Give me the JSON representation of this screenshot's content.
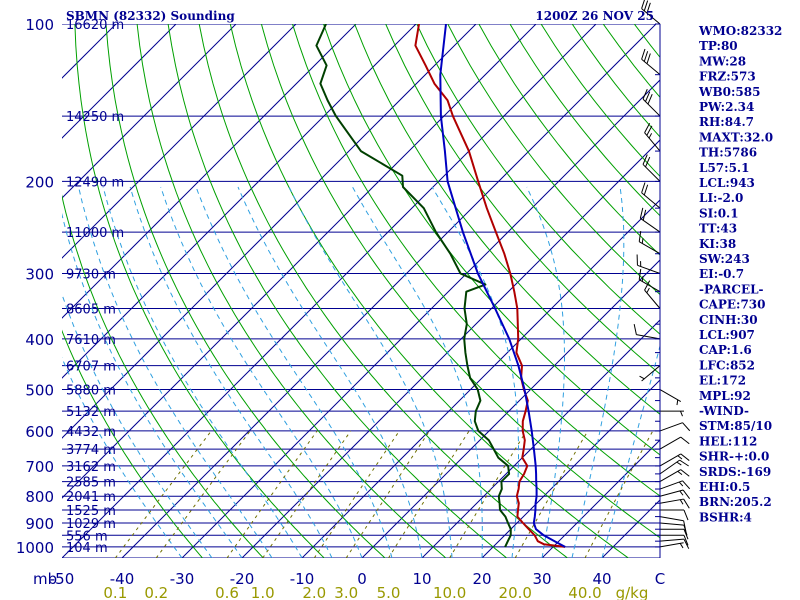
{
  "header": {
    "station": "SBMN (82332) Sounding",
    "datetime": "1200Z 26 NOV 25"
  },
  "colors": {
    "isobar": "#000090",
    "isotherm": "#000090",
    "dry_adiabat": "#00a000",
    "moist_adiabat": "#30a0e0",
    "mixing_ratio": "#707000",
    "temperature": "#b00000",
    "dewpoint": "#004000",
    "parcel": "#0000c0",
    "text": "#000090",
    "mixing_label": "#999900"
  },
  "indices": [
    "WMO:82332",
    "TP:80",
    "MW:28",
    "FRZ:573",
    "WB0:585",
    "PW:2.34",
    "RH:84.7",
    "MAXT:32.0",
    "TH:5786",
    "L57:5.1",
    "LCL:943",
    "LI:-2.0",
    "SI:0.1",
    "TT:43",
    "KI:38",
    "SW:243",
    "EI:-0.7",
    "-PARCEL-",
    "CAPE:730",
    "CINH:30",
    "LCL:907",
    "CAP:1.6",
    "LFC:852",
    "EL:172",
    "MPL:92",
    "-WIND-",
    "STM:85/10",
    "HEL:112",
    "SHR-+:0.0",
    "SRDS:-169",
    "EHI:0.5",
    "BRN:205.2",
    "BSHR:4"
  ],
  "chart_data": {
    "type": "line",
    "title": "SBMN (82332) Sounding",
    "xlabel": "mb",
    "x_tick_labels": [
      "-50",
      "-40",
      "-30",
      "-20",
      "-10",
      "0",
      "10",
      "20",
      "30",
      "40",
      "C"
    ],
    "x_ticks": [
      -50,
      -40,
      -30,
      -20,
      -10,
      0,
      10,
      20,
      30,
      40
    ],
    "y_ticks": [
      100,
      200,
      300,
      400,
      500,
      600,
      700,
      800,
      900,
      1000
    ],
    "y_tick_labels": [
      "100",
      "200",
      "300",
      "400",
      "500",
      "600",
      "700",
      "800",
      "900",
      "1000"
    ],
    "ylim": [
      1000,
      100
    ],
    "mixing_ratio_labels": [
      "0.1",
      "0.2",
      "0.6",
      "1.0",
      "2.0",
      "3.0",
      "5.0",
      "10.0",
      "20.0",
      "40.0",
      "g/kg"
    ],
    "mixing_ratio_values": [
      0.1,
      0.2,
      0.6,
      1.0,
      2.0,
      3.0,
      5.0,
      10.0,
      20.0,
      40.0
    ],
    "heights": [
      {
        "p": 100,
        "label": "16620 m"
      },
      {
        "p": 150,
        "label": "14250 m"
      },
      {
        "p": 200,
        "label": "12490 m"
      },
      {
        "p": 250,
        "label": "11000 m"
      },
      {
        "p": 300,
        "label": "9730 m"
      },
      {
        "p": 350,
        "label": "8605 m"
      },
      {
        "p": 400,
        "label": "7610 m"
      },
      {
        "p": 450,
        "label": "6707 m"
      },
      {
        "p": 500,
        "label": "5880 m"
      },
      {
        "p": 550,
        "label": "5132 m"
      },
      {
        "p": 600,
        "label": "4432 m"
      },
      {
        "p": 650,
        "label": "3774 m"
      },
      {
        "p": 700,
        "label": "3162 m"
      },
      {
        "p": 750,
        "label": "2585 m"
      },
      {
        "p": 800,
        "label": "2041 m"
      },
      {
        "p": 850,
        "label": "1525 m"
      },
      {
        "p": 900,
        "label": "1029 m"
      },
      {
        "p": 950,
        "label": "556 m"
      },
      {
        "p": 1000,
        "label": "104 m"
      }
    ],
    "series": [
      {
        "key": "temperature",
        "points": [
          [
            1000,
            32.0
          ],
          [
            988,
            28.0
          ],
          [
            975,
            26.5
          ],
          [
            950,
            25.0
          ],
          [
            925,
            23.0
          ],
          [
            900,
            21.0
          ],
          [
            875,
            19.0
          ],
          [
            850,
            18.0
          ],
          [
            825,
            17.0
          ],
          [
            800,
            15.5
          ],
          [
            775,
            14.6
          ],
          [
            750,
            13.5
          ],
          [
            725,
            13.0
          ],
          [
            700,
            12.2
          ],
          [
            675,
            10.0
          ],
          [
            650,
            8.8
          ],
          [
            625,
            7.5
          ],
          [
            600,
            5.6
          ],
          [
            575,
            4.0
          ],
          [
            550,
            2.8
          ],
          [
            525,
            1.4
          ],
          [
            500,
            -1.1
          ],
          [
            475,
            -3.5
          ],
          [
            450,
            -5.4
          ],
          [
            425,
            -8.5
          ],
          [
            400,
            -10.5
          ],
          [
            375,
            -13.0
          ],
          [
            350,
            -15.7
          ],
          [
            325,
            -19.0
          ],
          [
            300,
            -22.7
          ],
          [
            275,
            -27.0
          ],
          [
            250,
            -32.0
          ],
          [
            225,
            -37.5
          ],
          [
            200,
            -43.4
          ],
          [
            175,
            -50.0
          ],
          [
            150,
            -58.5
          ],
          [
            140,
            -62.0
          ],
          [
            130,
            -67.0
          ],
          [
            120,
            -71.5
          ],
          [
            110,
            -76.5
          ],
          [
            100,
            -79.5
          ]
        ]
      },
      {
        "key": "dewpoint",
        "points": [
          [
            1000,
            22.0
          ],
          [
            975,
            21.5
          ],
          [
            950,
            21.0
          ],
          [
            925,
            20.0
          ],
          [
            900,
            18.5
          ],
          [
            875,
            17.0
          ],
          [
            850,
            15.0
          ],
          [
            825,
            13.8
          ],
          [
            800,
            12.5
          ],
          [
            775,
            11.8
          ],
          [
            750,
            10.5
          ],
          [
            725,
            10.5
          ],
          [
            700,
            9.0
          ],
          [
            675,
            6.0
          ],
          [
            650,
            3.8
          ],
          [
            625,
            1.5
          ],
          [
            600,
            -1.8
          ],
          [
            575,
            -4.0
          ],
          [
            550,
            -5.5
          ],
          [
            525,
            -6.5
          ],
          [
            500,
            -8.8
          ],
          [
            475,
            -12.0
          ],
          [
            450,
            -14.5
          ],
          [
            425,
            -17.0
          ],
          [
            400,
            -19.5
          ],
          [
            375,
            -21.5
          ],
          [
            350,
            -24.5
          ],
          [
            325,
            -27.0
          ],
          [
            315,
            -25.0
          ],
          [
            300,
            -31.0
          ],
          [
            275,
            -36.0
          ],
          [
            250,
            -42.0
          ],
          [
            225,
            -48.0
          ],
          [
            205,
            -55.0
          ],
          [
            195,
            -57.0
          ],
          [
            175,
            -68.0
          ],
          [
            150,
            -78.0
          ],
          [
            140,
            -82.0
          ],
          [
            130,
            -86.0
          ],
          [
            120,
            -88.0
          ],
          [
            110,
            -93.0
          ],
          [
            100,
            -95.0
          ]
        ]
      },
      {
        "key": "parcel",
        "points": [
          [
            1000,
            32.0
          ],
          [
            975,
            29.3
          ],
          [
            950,
            26.5
          ],
          [
            925,
            24.2
          ],
          [
            900,
            22.8
          ],
          [
            875,
            21.9
          ],
          [
            850,
            20.9
          ],
          [
            825,
            19.8
          ],
          [
            800,
            18.8
          ],
          [
            775,
            17.6
          ],
          [
            750,
            16.3
          ],
          [
            725,
            15.0
          ],
          [
            700,
            13.6
          ],
          [
            650,
            10.5
          ],
          [
            600,
            7.1
          ],
          [
            550,
            3.3
          ],
          [
            500,
            -1.0
          ],
          [
            450,
            -6.0
          ],
          [
            400,
            -12.0
          ],
          [
            350,
            -19.4
          ],
          [
            300,
            -28.1
          ],
          [
            250,
            -37.5
          ],
          [
            200,
            -48.5
          ],
          [
            175,
            -54.0
          ],
          [
            150,
            -60.5
          ],
          [
            125,
            -67.5
          ],
          [
            100,
            -75.0
          ]
        ]
      }
    ],
    "winds": [
      {
        "p": 1000,
        "dir": 80,
        "spd": 5
      },
      {
        "p": 975,
        "dir": 85,
        "spd": 10
      },
      {
        "p": 950,
        "dir": 90,
        "spd": 10
      },
      {
        "p": 925,
        "dir": 90,
        "spd": 10
      },
      {
        "p": 900,
        "dir": 95,
        "spd": 10
      },
      {
        "p": 875,
        "dir": 100,
        "spd": 10
      },
      {
        "p": 850,
        "dir": 90,
        "spd": 10
      },
      {
        "p": 825,
        "dir": 80,
        "spd": 15
      },
      {
        "p": 800,
        "dir": 75,
        "spd": 15
      },
      {
        "p": 775,
        "dir": 70,
        "spd": 15
      },
      {
        "p": 750,
        "dir": 60,
        "spd": 15
      },
      {
        "p": 725,
        "dir": 55,
        "spd": 15
      },
      {
        "p": 700,
        "dir": 60,
        "spd": 15
      },
      {
        "p": 650,
        "dir": 60,
        "spd": 10
      },
      {
        "p": 600,
        "dir": 70,
        "spd": 10
      },
      {
        "p": 550,
        "dir": 90,
        "spd": 5
      },
      {
        "p": 500,
        "dir": 120,
        "spd": 5
      },
      {
        "p": 450,
        "dir": 230,
        "spd": 5
      },
      {
        "p": 400,
        "dir": 280,
        "spd": 10
      },
      {
        "p": 350,
        "dir": 320,
        "spd": 15
      },
      {
        "p": 325,
        "dir": 300,
        "spd": 15
      },
      {
        "p": 300,
        "dir": 290,
        "spd": 15
      },
      {
        "p": 275,
        "dir": 300,
        "spd": 15
      },
      {
        "p": 250,
        "dir": 305,
        "spd": 20
      },
      {
        "p": 225,
        "dir": 310,
        "spd": 20
      },
      {
        "p": 200,
        "dir": 315,
        "spd": 20
      },
      {
        "p": 175,
        "dir": 320,
        "spd": 25
      },
      {
        "p": 150,
        "dir": 315,
        "spd": 30
      },
      {
        "p": 125,
        "dir": 310,
        "spd": 30
      },
      {
        "p": 100,
        "dir": 310,
        "spd": 30
      }
    ]
  }
}
